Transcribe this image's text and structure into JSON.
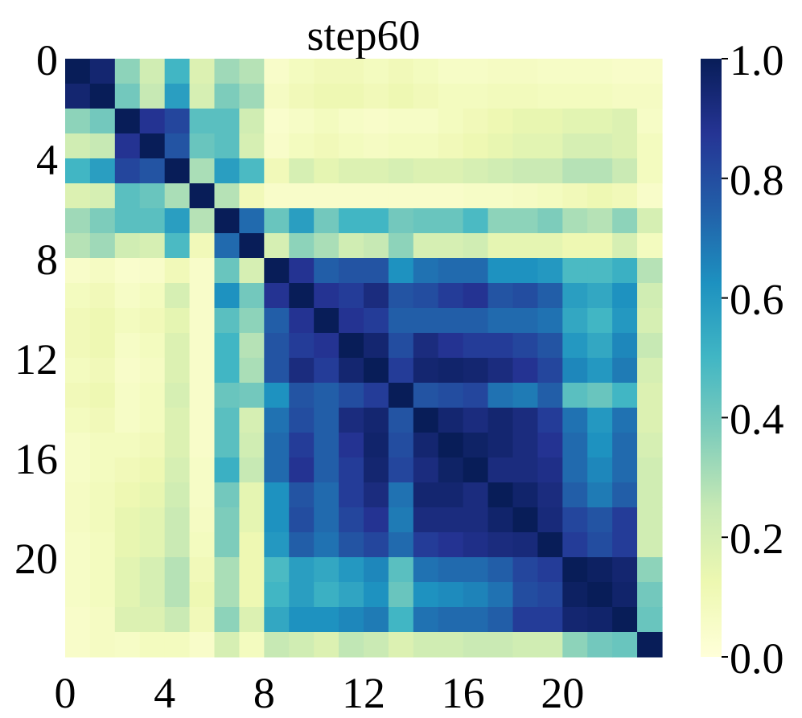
{
  "chart_data": {
    "type": "heatmap",
    "title": "step60",
    "colormap": "YlGnBu",
    "vmin": 0.0,
    "vmax": 1.0,
    "x_ticks": [
      "0",
      "4",
      "8",
      "12",
      "16",
      "20"
    ],
    "x_tick_positions": [
      0,
      4,
      8,
      12,
      16,
      20
    ],
    "y_ticks": [
      "0",
      "4",
      "8",
      "12",
      "16",
      "20"
    ],
    "y_tick_positions": [
      0,
      4,
      8,
      12,
      16,
      20
    ],
    "colorbar_ticks": [
      "0.0",
      "0.2",
      "0.4",
      "0.6",
      "0.8",
      "1.0"
    ],
    "colorbar_tick_values": [
      0.0,
      0.2,
      0.4,
      0.6,
      0.8,
      1.0
    ],
    "matrix": [
      [
        1.0,
        0.95,
        0.35,
        0.22,
        0.5,
        0.18,
        0.32,
        0.28,
        0.05,
        0.08,
        0.1,
        0.1,
        0.08,
        0.1,
        0.08,
        0.06,
        0.06,
        0.07,
        0.07,
        0.06,
        0.06,
        0.06,
        0.05,
        0.05
      ],
      [
        0.95,
        1.0,
        0.4,
        0.25,
        0.58,
        0.2,
        0.38,
        0.32,
        0.07,
        0.1,
        0.12,
        0.12,
        0.1,
        0.12,
        0.1,
        0.08,
        0.08,
        0.09,
        0.09,
        0.08,
        0.08,
        0.08,
        0.07,
        0.07
      ],
      [
        0.35,
        0.4,
        1.0,
        0.88,
        0.82,
        0.45,
        0.45,
        0.22,
        0.04,
        0.06,
        0.08,
        0.06,
        0.05,
        0.06,
        0.06,
        0.08,
        0.1,
        0.12,
        0.14,
        0.14,
        0.16,
        0.16,
        0.18,
        0.06
      ],
      [
        0.22,
        0.25,
        0.88,
        1.0,
        0.78,
        0.42,
        0.45,
        0.2,
        0.05,
        0.08,
        0.1,
        0.08,
        0.07,
        0.08,
        0.08,
        0.1,
        0.12,
        0.14,
        0.16,
        0.16,
        0.2,
        0.2,
        0.18,
        0.08
      ],
      [
        0.5,
        0.58,
        0.82,
        0.78,
        1.0,
        0.3,
        0.58,
        0.48,
        0.1,
        0.2,
        0.15,
        0.18,
        0.18,
        0.2,
        0.18,
        0.18,
        0.2,
        0.22,
        0.24,
        0.24,
        0.28,
        0.28,
        0.24,
        0.08
      ],
      [
        0.18,
        0.2,
        0.45,
        0.42,
        0.3,
        1.0,
        0.28,
        0.1,
        0.05,
        0.05,
        0.05,
        0.05,
        0.05,
        0.05,
        0.05,
        0.05,
        0.06,
        0.06,
        0.07,
        0.08,
        0.1,
        0.12,
        0.1,
        0.05
      ],
      [
        0.32,
        0.38,
        0.45,
        0.45,
        0.58,
        0.28,
        1.0,
        0.72,
        0.42,
        0.58,
        0.4,
        0.5,
        0.5,
        0.4,
        0.42,
        0.42,
        0.48,
        0.35,
        0.35,
        0.38,
        0.3,
        0.28,
        0.35,
        0.2
      ],
      [
        0.28,
        0.32,
        0.22,
        0.2,
        0.48,
        0.1,
        0.72,
        1.0,
        0.2,
        0.35,
        0.3,
        0.22,
        0.25,
        0.35,
        0.2,
        0.2,
        0.22,
        0.15,
        0.15,
        0.15,
        0.12,
        0.12,
        0.2,
        0.08
      ],
      [
        0.05,
        0.07,
        0.04,
        0.05,
        0.1,
        0.05,
        0.42,
        0.2,
        1.0,
        0.88,
        0.75,
        0.78,
        0.78,
        0.62,
        0.7,
        0.72,
        0.72,
        0.62,
        0.62,
        0.6,
        0.48,
        0.48,
        0.52,
        0.28
      ],
      [
        0.08,
        0.1,
        0.06,
        0.08,
        0.2,
        0.05,
        0.62,
        0.4,
        0.88,
        1.0,
        0.88,
        0.85,
        0.92,
        0.78,
        0.8,
        0.85,
        0.88,
        0.78,
        0.8,
        0.75,
        0.58,
        0.55,
        0.62,
        0.22
      ],
      [
        0.1,
        0.12,
        0.08,
        0.1,
        0.15,
        0.05,
        0.45,
        0.35,
        0.75,
        0.88,
        1.0,
        0.88,
        0.85,
        0.75,
        0.75,
        0.75,
        0.75,
        0.72,
        0.72,
        0.7,
        0.55,
        0.5,
        0.6,
        0.2
      ],
      [
        0.1,
        0.12,
        0.06,
        0.08,
        0.18,
        0.05,
        0.5,
        0.28,
        0.78,
        0.85,
        0.88,
        1.0,
        0.95,
        0.8,
        0.92,
        0.88,
        0.85,
        0.85,
        0.82,
        0.78,
        0.6,
        0.55,
        0.65,
        0.25
      ],
      [
        0.08,
        0.1,
        0.05,
        0.07,
        0.18,
        0.05,
        0.5,
        0.3,
        0.78,
        0.92,
        0.85,
        0.95,
        1.0,
        0.85,
        0.95,
        0.96,
        0.95,
        0.92,
        0.88,
        0.82,
        0.65,
        0.6,
        0.68,
        0.2
      ],
      [
        0.1,
        0.12,
        0.06,
        0.08,
        0.2,
        0.05,
        0.42,
        0.4,
        0.62,
        0.78,
        0.75,
        0.8,
        0.85,
        1.0,
        0.78,
        0.8,
        0.82,
        0.7,
        0.68,
        0.75,
        0.45,
        0.42,
        0.5,
        0.18
      ],
      [
        0.08,
        0.1,
        0.06,
        0.08,
        0.18,
        0.05,
        0.45,
        0.2,
        0.7,
        0.8,
        0.75,
        0.92,
        0.95,
        0.78,
        1.0,
        0.95,
        0.92,
        0.95,
        0.92,
        0.85,
        0.7,
        0.6,
        0.7,
        0.18
      ],
      [
        0.06,
        0.08,
        0.08,
        0.1,
        0.18,
        0.05,
        0.45,
        0.22,
        0.72,
        0.85,
        0.75,
        0.88,
        0.96,
        0.8,
        0.95,
        1.0,
        0.97,
        0.95,
        0.92,
        0.88,
        0.72,
        0.62,
        0.72,
        0.2
      ],
      [
        0.06,
        0.08,
        0.1,
        0.12,
        0.2,
        0.06,
        0.52,
        0.25,
        0.72,
        0.88,
        0.75,
        0.85,
        0.95,
        0.82,
        0.92,
        0.97,
        1.0,
        0.92,
        0.92,
        0.9,
        0.72,
        0.65,
        0.72,
        0.22
      ],
      [
        0.07,
        0.09,
        0.12,
        0.14,
        0.22,
        0.06,
        0.4,
        0.15,
        0.62,
        0.78,
        0.72,
        0.85,
        0.92,
        0.7,
        0.95,
        0.95,
        0.92,
        1.0,
        0.96,
        0.92,
        0.75,
        0.68,
        0.75,
        0.22
      ],
      [
        0.07,
        0.09,
        0.14,
        0.16,
        0.24,
        0.07,
        0.38,
        0.15,
        0.62,
        0.8,
        0.72,
        0.82,
        0.88,
        0.68,
        0.92,
        0.92,
        0.92,
        0.96,
        1.0,
        0.93,
        0.82,
        0.78,
        0.85,
        0.22
      ],
      [
        0.06,
        0.08,
        0.14,
        0.16,
        0.24,
        0.08,
        0.38,
        0.12,
        0.6,
        0.75,
        0.7,
        0.78,
        0.82,
        0.72,
        0.85,
        0.88,
        0.9,
        0.92,
        0.93,
        1.0,
        0.85,
        0.8,
        0.85,
        0.22
      ],
      [
        0.06,
        0.08,
        0.16,
        0.2,
        0.28,
        0.1,
        0.3,
        0.12,
        0.48,
        0.58,
        0.55,
        0.6,
        0.65,
        0.45,
        0.7,
        0.72,
        0.72,
        0.75,
        0.82,
        0.85,
        1.0,
        0.98,
        0.95,
        0.35
      ],
      [
        0.06,
        0.08,
        0.16,
        0.2,
        0.28,
        0.12,
        0.3,
        0.12,
        0.5,
        0.58,
        0.52,
        0.56,
        0.62,
        0.42,
        0.62,
        0.64,
        0.66,
        0.7,
        0.8,
        0.82,
        0.98,
        1.0,
        0.96,
        0.4
      ],
      [
        0.05,
        0.07,
        0.18,
        0.18,
        0.24,
        0.1,
        0.35,
        0.18,
        0.55,
        0.62,
        0.62,
        0.65,
        0.68,
        0.5,
        0.7,
        0.72,
        0.72,
        0.75,
        0.85,
        0.85,
        0.95,
        0.96,
        1.0,
        0.42
      ],
      [
        0.05,
        0.07,
        0.06,
        0.08,
        0.08,
        0.05,
        0.2,
        0.08,
        0.25,
        0.22,
        0.18,
        0.26,
        0.24,
        0.18,
        0.22,
        0.22,
        0.24,
        0.24,
        0.22,
        0.22,
        0.35,
        0.4,
        0.42,
        1.0
      ]
    ]
  }
}
